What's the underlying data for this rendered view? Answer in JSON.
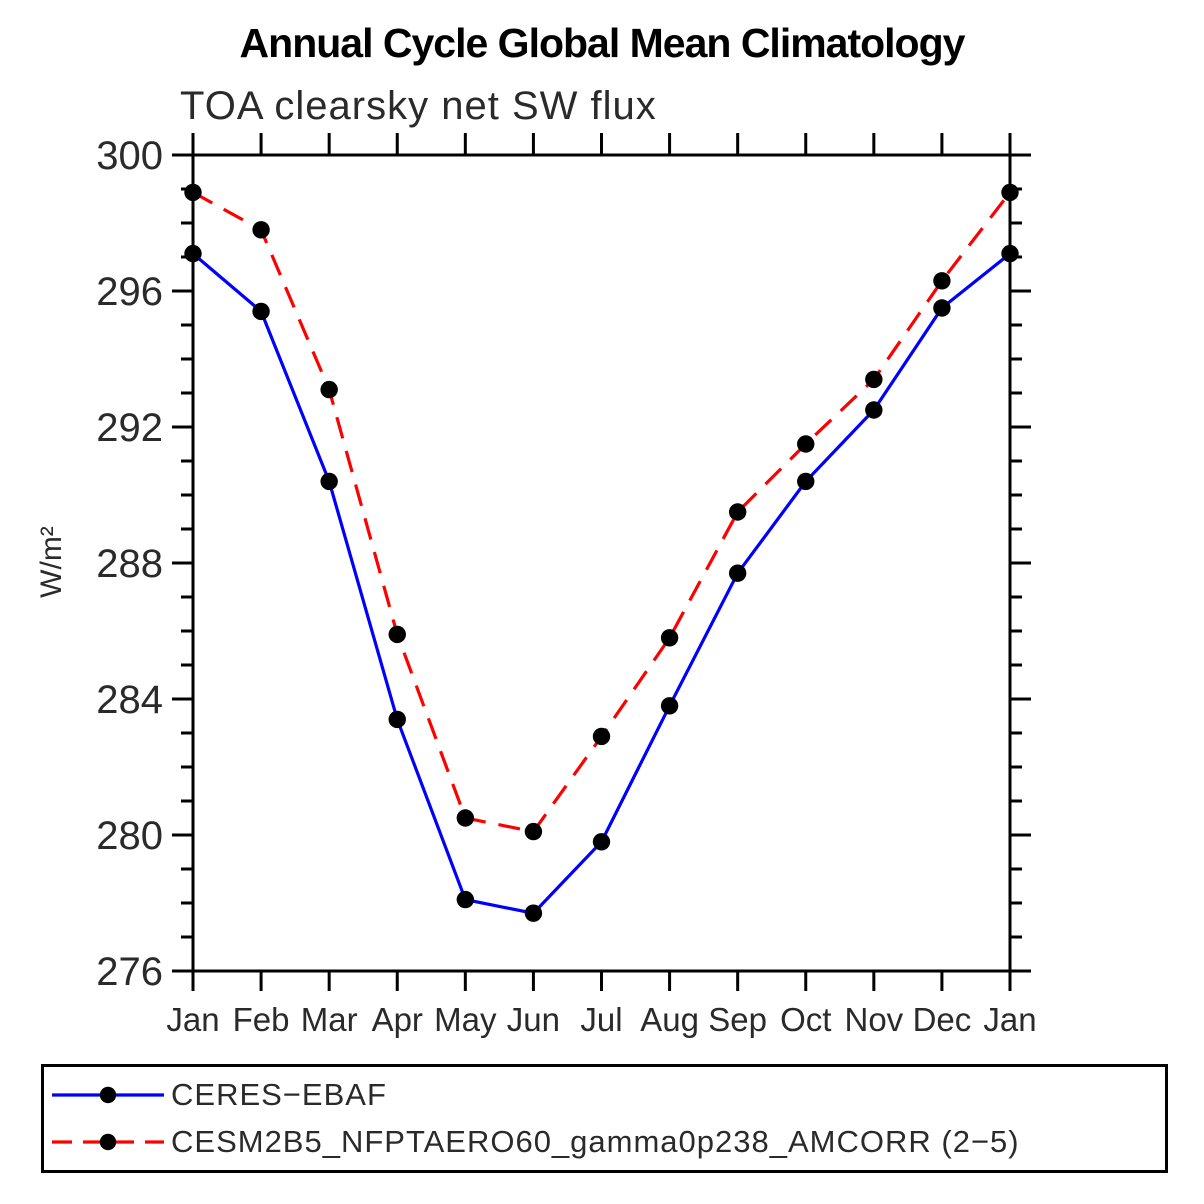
{
  "chart_data": {
    "type": "line",
    "title": "Annual Cycle Global Mean Climatology",
    "subtitle": "TOA clearsky net SW flux",
    "ylabel": "W/m²",
    "xlabel": "",
    "ylim": [
      276,
      300
    ],
    "ytick_major": [
      276,
      280,
      284,
      288,
      292,
      296,
      300
    ],
    "ytick_minor_step": 1,
    "grid": false,
    "legend_position": "bottom",
    "marker": "filled-circle",
    "marker_color": "#000000",
    "categories": [
      "Jan",
      "Feb",
      "Mar",
      "Apr",
      "May",
      "Jun",
      "Jul",
      "Aug",
      "Sep",
      "Oct",
      "Nov",
      "Dec",
      "Jan"
    ],
    "series": [
      {
        "name": "CERES−EBAF",
        "color": "#0000ff",
        "line_style": "solid",
        "values": [
          297.1,
          295.4,
          290.4,
          283.4,
          278.1,
          277.7,
          279.8,
          283.8,
          287.7,
          290.4,
          292.5,
          295.5,
          297.1
        ]
      },
      {
        "name": "CESM2B5_NFPTAERO60_gamma0p238_AMCORR (2−5)",
        "color": "#ff0000",
        "line_style": "dashed",
        "values": [
          298.9,
          297.8,
          293.1,
          285.9,
          280.5,
          280.1,
          282.9,
          285.8,
          289.5,
          291.5,
          293.4,
          296.3,
          298.9
        ]
      }
    ]
  }
}
